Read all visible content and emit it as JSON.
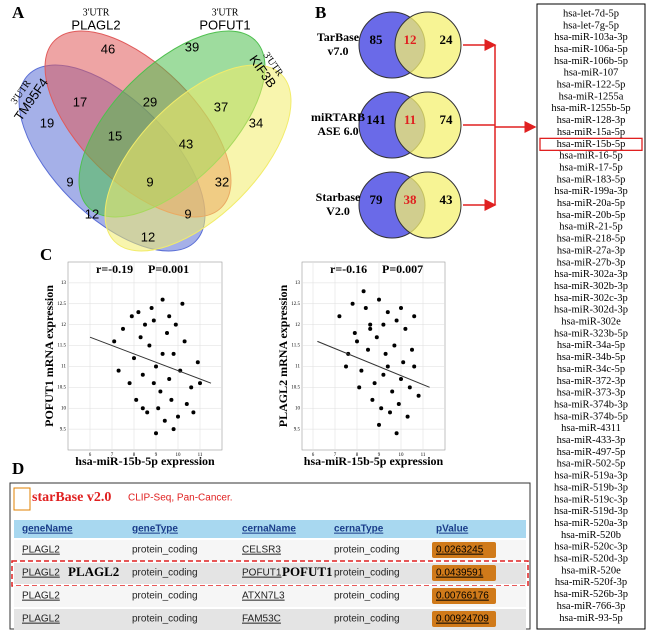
{
  "panel_labels": [
    "A",
    "B",
    "C",
    "D"
  ],
  "venn4": {
    "utr": "3'UTR",
    "sets": [
      "TM95F4",
      "PLAGL2",
      "POFUT1",
      "KIF3B"
    ],
    "regions": [
      46,
      39,
      17,
      29,
      37,
      19,
      15,
      43,
      34,
      9,
      9,
      32,
      12,
      9,
      12
    ]
  },
  "venn2": [
    {
      "name": [
        "TarBase",
        "v7.0"
      ],
      "counts": [
        85,
        12,
        24
      ]
    },
    {
      "name": [
        "miRTARB",
        "ASE 6.0"
      ],
      "counts": [
        141,
        11,
        74
      ]
    },
    {
      "name": [
        "Starbase",
        "V2.0"
      ],
      "counts": [
        79,
        38,
        43
      ]
    }
  ],
  "mirna_list": [
    "hsa-let-7d-5p",
    "hsa-let-7g-5p",
    "hsa-miR-103a-3p",
    "hsa-miR-106a-5p",
    "hsa-miR-106b-5p",
    "hsa-miR-107",
    "hsa-miR-122-5p",
    "hsa-miR-1255a",
    "hsa-miR-1255b-5p",
    "hsa-miR-128-3p",
    "hsa-miR-15a-5p",
    "hsa-miR-15b-5p",
    "hsa-miR-16-5p",
    "hsa-miR-17-5p",
    "hsa-miR-183-5p",
    "hsa-miR-199a-3p",
    "hsa-miR-20a-5p",
    "hsa-miR-20b-5p",
    "hsa-miR-21-5p",
    "hsa-miR-218-5p",
    "hsa-miR-27a-3p",
    "hsa-miR-27b-3p",
    "hsa-miR-302a-3p",
    "hsa-miR-302b-3p",
    "hsa-miR-302c-3p",
    "hsa-miR-302d-3p",
    "hsa-miR-302e",
    "hsa-miR-323b-5p",
    "hsa-miR-34a-5p",
    "hsa-miR-34b-5p",
    "hsa-miR-34c-5p",
    "hsa-miR-372-3p",
    "hsa-miR-373-3p",
    "hsa-miR-374b-3p",
    "hsa-miR-374b-5p",
    "hsa-miR-4311",
    "hsa-miR-433-3p",
    "hsa-miR-497-5p",
    "hsa-miR-502-5p",
    "hsa-miR-519a-3p",
    "hsa-miR-519b-3p",
    "hsa-miR-519c-3p",
    "hsa-miR-519d-3p",
    "hsa-miR-520a-3p",
    "hsa-miR-520b",
    "hsa-miR-520c-3p",
    "hsa-miR-520d-3p",
    "hsa-miR-520e",
    "hsa-miR-520f-3p",
    "hsa-miR-526b-3p",
    "hsa-miR-766-3p",
    "hsa-miR-93-5p"
  ],
  "mirna_highlight": 11,
  "chart_data": [
    {
      "type": "scatter",
      "r": "r=-0.19",
      "p": "P=0.001",
      "xlabel": "hsa-miR-15b-5p expression",
      "ylabel": "POFUT1 mRNA expression",
      "xlim": [
        5,
        12
      ],
      "xticks": [
        6,
        7,
        8,
        9,
        10,
        11
      ],
      "ylim": [
        9,
        13.5
      ],
      "yticks": [
        9.5,
        10,
        10.5,
        11,
        11.5,
        12,
        12.5,
        13
      ],
      "x": [
        8.2,
        8.9,
        9.3,
        7.1,
        7.5,
        8.0,
        8.4,
        8.7,
        9.0,
        9.2,
        9.5,
        9.8,
        10.1,
        10.3,
        10.6,
        10.9,
        8.1,
        8.6,
        9.1,
        9.4,
        9.7,
        10.0,
        10.4,
        7.8,
        7.3,
        8.3,
        8.8,
        9.6,
        10.2,
        9.9,
        8.5,
        7.9,
        9.0,
        9.8,
        10.7,
        11.0,
        8.4,
        9.3,
        9.6,
        8.9
      ],
      "y": [
        12.3,
        12.1,
        12.6,
        11.6,
        11.9,
        11.2,
        10.8,
        11.5,
        11.0,
        10.4,
        11.8,
        11.3,
        10.9,
        11.6,
        10.5,
        11.1,
        10.2,
        9.9,
        10.0,
        9.7,
        10.2,
        9.8,
        10.1,
        10.6,
        10.9,
        11.7,
        12.4,
        12.2,
        12.5,
        12.0,
        12.0,
        12.2,
        9.4,
        9.5,
        9.9,
        10.6,
        10.0,
        11.3,
        10.7,
        10.6
      ],
      "trend_x": [
        6,
        11.5
      ],
      "trend_y": [
        11.7,
        10.6
      ],
      "color": "#000000"
    },
    {
      "type": "scatter",
      "r": "r=-0.16",
      "p": "P=0.007",
      "xlabel": "hsa-miR-15b-5p expression",
      "ylabel": "PLAGL2 mRNA expression",
      "xlim": [
        5.5,
        12
      ],
      "xticks": [
        6,
        7,
        8,
        9,
        10,
        11
      ],
      "ylim": [
        9,
        13.5
      ],
      "yticks": [
        9.5,
        10,
        10.5,
        11,
        11.5,
        12,
        12.5,
        13
      ],
      "x": [
        7.2,
        7.8,
        8.3,
        8.6,
        9.0,
        9.4,
        9.8,
        10.2,
        10.6,
        8.0,
        8.5,
        8.9,
        9.3,
        9.7,
        10.1,
        10.5,
        7.5,
        8.2,
        8.8,
        9.2,
        9.6,
        10.0,
        10.4,
        7.9,
        8.7,
        9.1,
        9.5,
        9.9,
        10.3,
        8.4,
        9.0,
        9.8,
        10.8,
        7.6,
        8.1,
        9.4,
        10.0,
        8.6,
        9.2,
        10.6
      ],
      "y": [
        12.2,
        12.5,
        12.8,
        12.0,
        12.6,
        12.3,
        12.1,
        11.9,
        12.2,
        11.6,
        11.4,
        11.7,
        11.3,
        11.5,
        11.1,
        11.4,
        11.0,
        10.9,
        10.6,
        10.8,
        10.4,
        10.7,
        10.5,
        11.8,
        10.2,
        10.0,
        9.9,
        10.1,
        9.8,
        12.4,
        9.6,
        9.4,
        10.3,
        11.3,
        10.5,
        11.0,
        12.4,
        11.9,
        12.0,
        11.0
      ],
      "trend_x": [
        6.2,
        11.3
      ],
      "trend_y": [
        11.6,
        10.5
      ],
      "color": "#000000"
    }
  ],
  "table": {
    "logo": "starBase v2.0",
    "subtitle": "CLIP-Seq, Pan-Cancer.",
    "columns": [
      "geneName",
      "geneType",
      "cernaName",
      "cernaType",
      "pValue"
    ],
    "rows": [
      [
        "PLAGL2",
        "protein_coding",
        "CELSR3",
        "protein_coding",
        "0.0263245"
      ],
      [
        "PLAGL2",
        "protein_coding",
        "POFUT1",
        "protein_coding",
        "0.0439591"
      ],
      [
        "PLAGL2",
        "protein_coding",
        "ATXN7L3",
        "protein_coding",
        "0.00766176"
      ],
      [
        "PLAGL2",
        "protein_coding",
        "FAM53C",
        "protein_coding",
        "0.00924709"
      ]
    ],
    "highlight_row": 1,
    "highlight_gene": "PLAGL2",
    "highlight_cerna": "POFUT1"
  }
}
